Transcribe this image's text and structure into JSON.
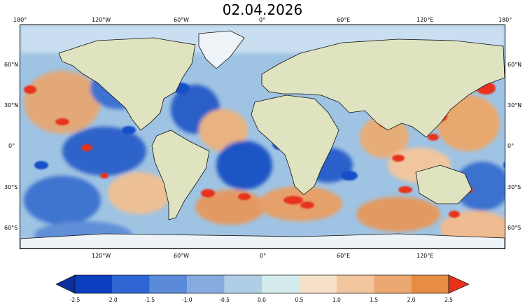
{
  "title": "02.04.2026",
  "lon_labels_top": [
    "180°",
    "120°W",
    "60°W",
    "0°",
    "60°E",
    "120°E",
    "180°"
  ],
  "lon_labels_bottom": [
    "120°W",
    "60°W",
    "0°",
    "60°E",
    "120°E"
  ],
  "lat_labels": [
    "60°N",
    "30°N",
    "0°",
    "30°S",
    "60°S"
  ],
  "colorbar": {
    "ticks": [
      "-2.5",
      "-2.0",
      "-1.5",
      "-1.0",
      "-0.5",
      "0.0",
      "0.5",
      "1.0",
      "1.5",
      "2.0",
      "2.5"
    ],
    "colors": [
      "#0b3fbf",
      "#2e66d3",
      "#5a8ad9",
      "#86abdf",
      "#b0cde6",
      "#d3ebea",
      "#f6e0c8",
      "#f1c59e",
      "#eba871",
      "#e68c43"
    ],
    "under_color": "#0b2f9c",
    "over_color": "#e8311b"
  },
  "colors": {
    "ocean_neutral": "#9fc3e3",
    "land": "#dfe3bf",
    "ice": "#eef3f8",
    "coast": "#111111",
    "hot_spot": "#e8311b",
    "cold_spot": "#1550c8"
  }
}
